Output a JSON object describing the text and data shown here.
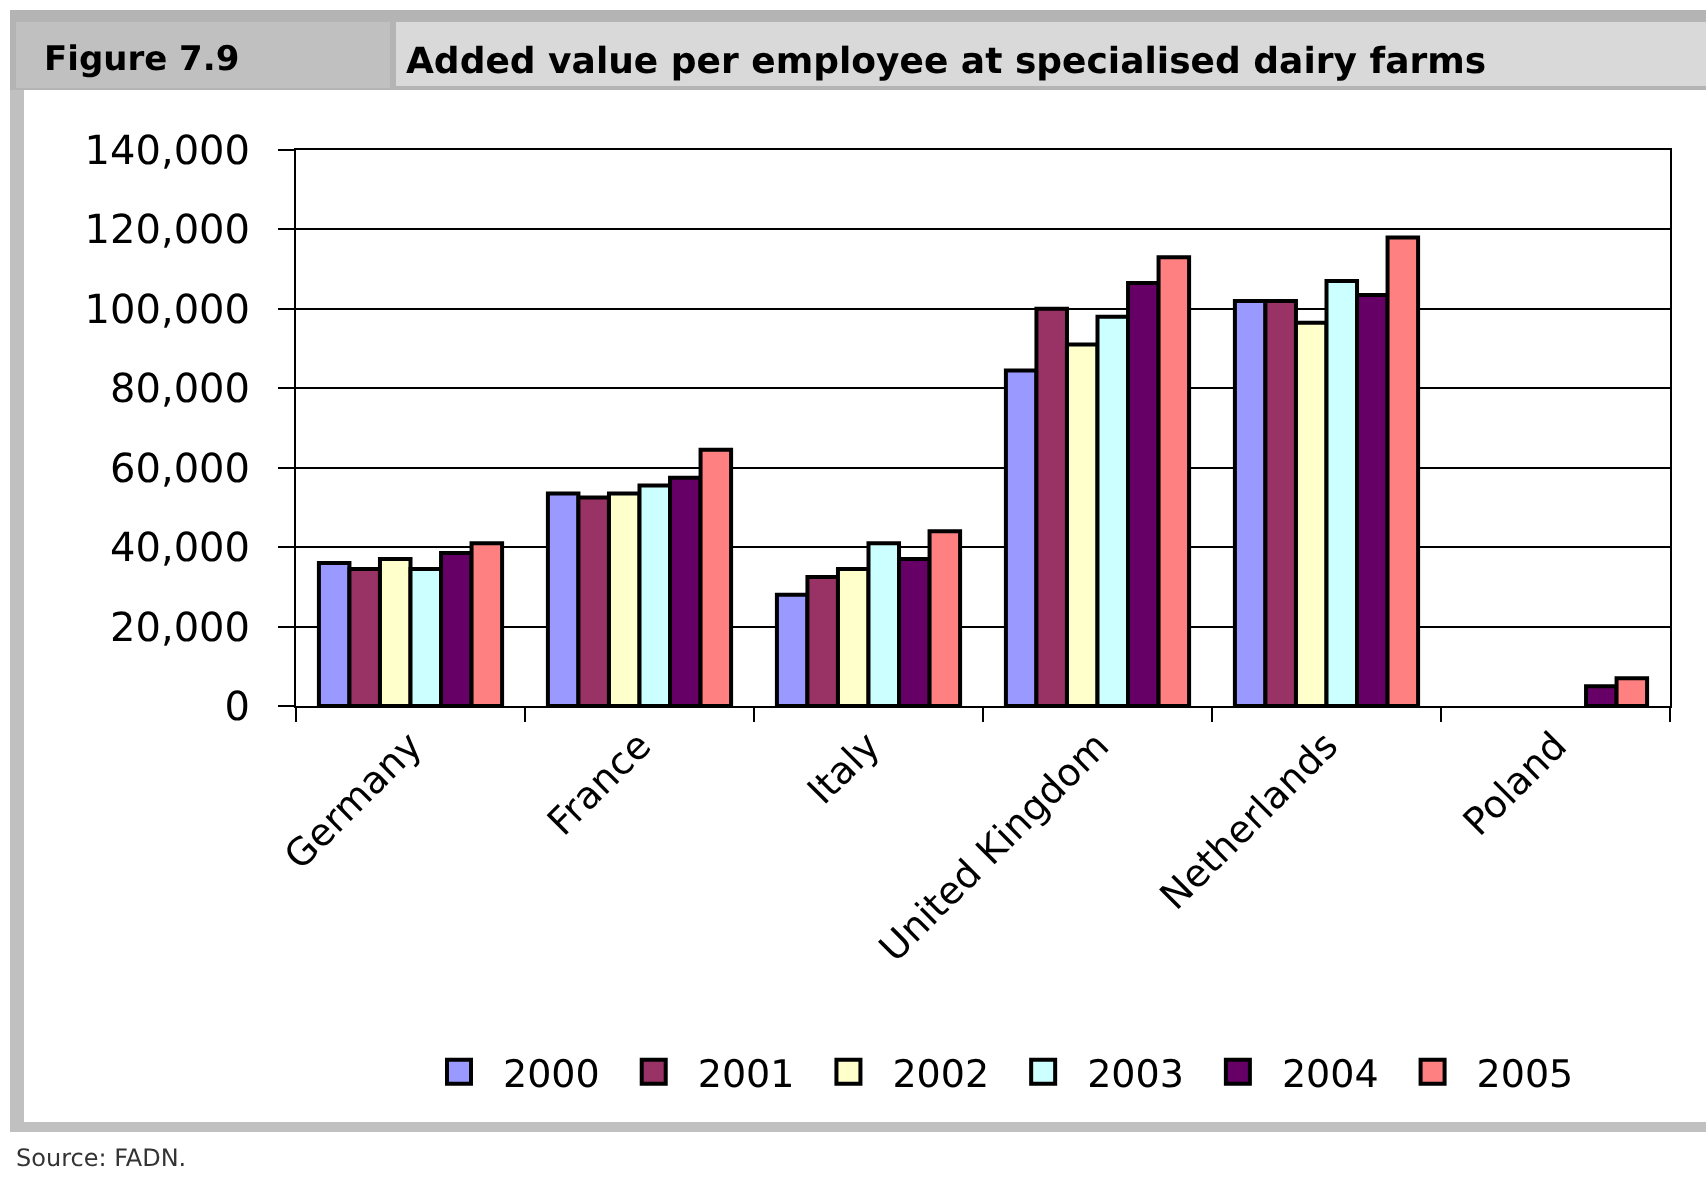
{
  "chart_data": {
    "type": "bar",
    "title": "Added value per employee at specialised dairy farms",
    "annotations": [
      "Figure 7.9",
      "Source: FADN."
    ],
    "categories": [
      "Germany",
      "France",
      "Italy",
      "United Kingdom",
      "Netherlands",
      "Poland"
    ],
    "series": [
      {
        "name": "2000",
        "color": "#9999ff",
        "values": [
          36000,
          53500,
          28000,
          84500,
          102000,
          null
        ]
      },
      {
        "name": "2001",
        "color": "#993366",
        "values": [
          34500,
          52500,
          32500,
          100000,
          102000,
          null
        ]
      },
      {
        "name": "2002",
        "color": "#ffffcc",
        "values": [
          37000,
          53500,
          34500,
          91000,
          96500,
          null
        ]
      },
      {
        "name": "2003",
        "color": "#ccffff",
        "values": [
          34500,
          55500,
          41000,
          98000,
          107000,
          null
        ]
      },
      {
        "name": "2004",
        "color": "#660066",
        "values": [
          38500,
          57500,
          37000,
          106500,
          103500,
          5000
        ]
      },
      {
        "name": "2005",
        "color": "#ff8080",
        "values": [
          41000,
          64500,
          44000,
          113000,
          118000,
          7000
        ]
      }
    ],
    "ylim": [
      0,
      140000
    ],
    "yticks": [
      0,
      {
        "value": 20000,
        "label": "20,000"
      },
      {
        "value": 40000,
        "label": "40,000"
      },
      {
        "value": 60000,
        "label": "60,000"
      },
      {
        "value": 80000,
        "label": "80,000"
      },
      {
        "value": 100000,
        "label": "100,000"
      },
      {
        "value": 120000,
        "label": "120,000"
      },
      {
        "value": 140000,
        "label": "140,000"
      }
    ],
    "grid": "y",
    "legend": "bottom"
  }
}
